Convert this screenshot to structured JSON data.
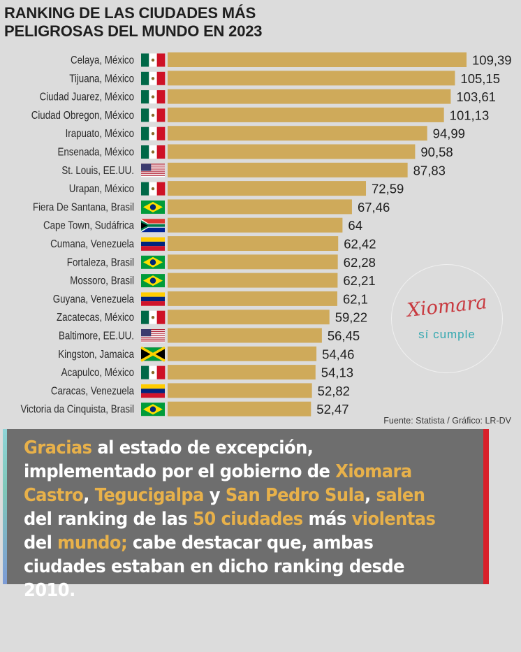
{
  "title": {
    "line1": "RANKING DE LAS CIUDADES MÁS",
    "line2": "PELIGROSAS DEL MUNDO EN 2023"
  },
  "colors": {
    "bar": "#cfaa5a",
    "background": "#dcdcdc",
    "banner": "#6e6e6e",
    "highlight": "#e8b14a",
    "accent_red": "#d9202a"
  },
  "chart_data": {
    "type": "bar",
    "orientation": "horizontal",
    "title": "RANKING DE LAS CIUDADES MÁS PELIGROSAS DEL MUNDO EN 2023",
    "categories": [
      "Celaya, México",
      "Tijuana, México",
      "Ciudad Juarez, México",
      "Ciudad Obregon, México",
      "Irapuato, México",
      "Ensenada, México",
      "St. Louis, EE.UU.",
      "Urapan, México",
      "Fiera De Santana, Brasil",
      "Cape Town, Sudáfrica",
      "Cumana, Venezuela",
      "Fortaleza, Brasil",
      "Mossoro, Brasil",
      "Guyana, Venezuela",
      "Zacatecas, México",
      "Baltimore, EE.UU.",
      "Kingston, Jamaica",
      "Acapulco, México",
      "Caracas, Venezuela",
      "Victoria da Cinquista, Brasil"
    ],
    "values": [
      109.39,
      105.15,
      103.61,
      101.13,
      94.99,
      90.58,
      87.83,
      72.59,
      67.46,
      64,
      62.42,
      62.28,
      62.21,
      62.1,
      59.22,
      56.45,
      54.46,
      54.13,
      52.82,
      52.47
    ],
    "value_labels": [
      "109,39",
      "105,15",
      "103,61",
      "101,13",
      "94,99",
      "90,58",
      "87,83",
      "72,59",
      "67,46",
      "64",
      "62,42",
      "62,28",
      "62,21",
      "62,1",
      "59,22",
      "56,45",
      "54,46",
      "54,13",
      "52,82",
      "52,47"
    ],
    "flags": [
      "mx",
      "mx",
      "mx",
      "mx",
      "mx",
      "mx",
      "us",
      "mx",
      "br",
      "za",
      "ve",
      "br",
      "br",
      "ve",
      "mx",
      "us",
      "jm",
      "mx",
      "ve",
      "br"
    ],
    "xlim": [
      0,
      112
    ],
    "xlabel": "",
    "ylabel": ""
  },
  "source": "Fuente: Statista / Gráfico: LR-DV",
  "logo": {
    "line1": "Xiomara",
    "line2": "sí cumple"
  },
  "banner": {
    "segments": [
      {
        "text": "Gracias",
        "hl": true
      },
      {
        "text": " al estado de excepción, implementado por el gobierno de ",
        "hl": false
      },
      {
        "text": "Xiomara Castro",
        "hl": true
      },
      {
        "text": ", ",
        "hl": false
      },
      {
        "text": "Tegucigalpa",
        "hl": true
      },
      {
        "text": " y ",
        "hl": false
      },
      {
        "text": "San Pedro Sula",
        "hl": true
      },
      {
        "text": ", ",
        "hl": false
      },
      {
        "text": "salen",
        "hl": true
      },
      {
        "text": " del ranking de las ",
        "hl": false
      },
      {
        "text": "50 ciudades",
        "hl": true
      },
      {
        "text": " más ",
        "hl": false
      },
      {
        "text": "violentas",
        "hl": true
      },
      {
        "text": " del ",
        "hl": false
      },
      {
        "text": "mundo;",
        "hl": true
      },
      {
        "text": " cabe destacar que, ambas ciudades estaban en dicho ranking desde 2010.",
        "hl": false
      }
    ]
  }
}
